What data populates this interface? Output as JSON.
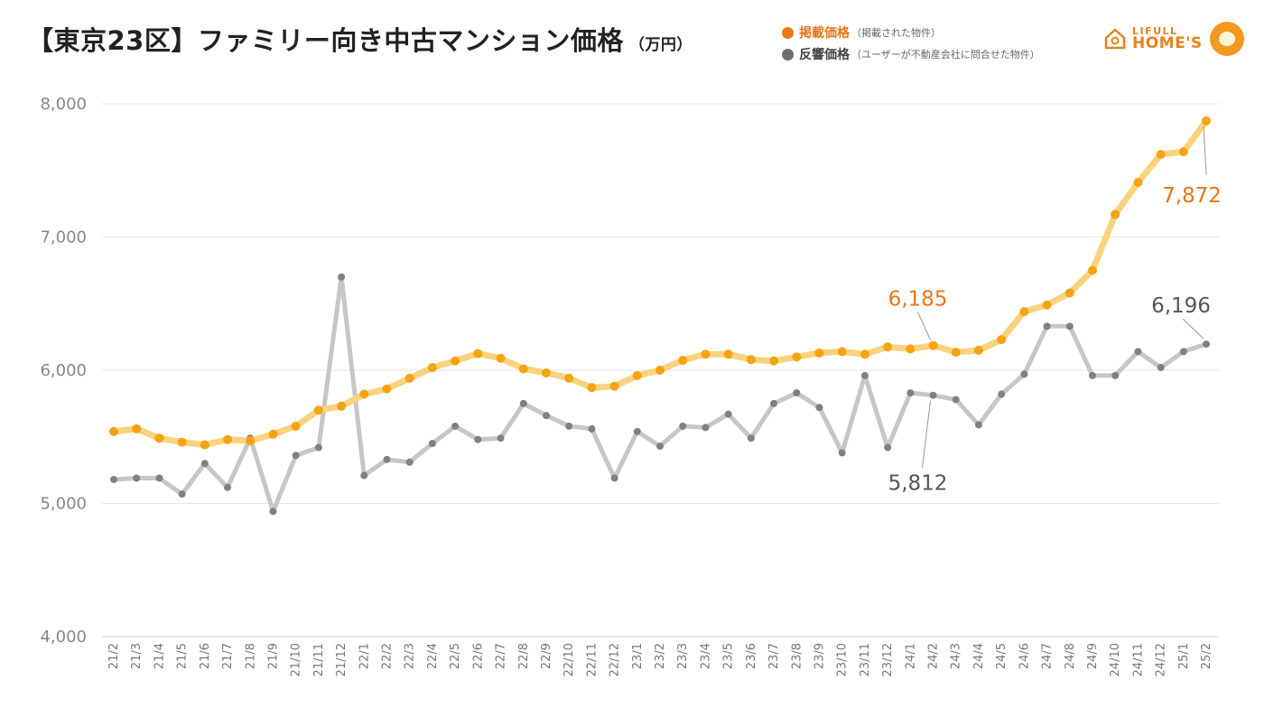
{
  "title": {
    "main": "【東京23区】ファミリー向き中古マンション価格",
    "unit": "（万円）"
  },
  "legend": {
    "listed": {
      "label": "掲載価格",
      "note": "（掲載された物件）",
      "color": "#f5a312"
    },
    "response": {
      "label": "反響価格",
      "note": "（ユーザーが不動産会社に問合せた物件）",
      "color": "#808080"
    }
  },
  "brand": {
    "line1": "LIFULL",
    "line2": "HOME'S"
  },
  "chart_data": {
    "type": "line",
    "ylim": [
      4000,
      8000
    ],
    "yticks": [
      4000,
      5000,
      6000,
      7000,
      8000
    ],
    "ytick_labels": [
      "4,000",
      "5,000",
      "6,000",
      "7,000",
      "8,000"
    ],
    "grid": true,
    "categories": [
      "21/2",
      "21/3",
      "21/4",
      "21/5",
      "21/6",
      "21/7",
      "21/8",
      "21/9",
      "21/10",
      "21/11",
      "21/12",
      "22/1",
      "22/2",
      "22/3",
      "22/4",
      "22/5",
      "22/6",
      "22/7",
      "22/8",
      "22/9",
      "22/10",
      "22/11",
      "22/12",
      "23/1",
      "23/2",
      "23/3",
      "23/4",
      "23/5",
      "23/6",
      "23/7",
      "23/8",
      "23/9",
      "23/10",
      "23/11",
      "23/12",
      "24/1",
      "24/2",
      "24/3",
      "24/4",
      "24/5",
      "24/6",
      "24/7",
      "24/8",
      "24/9",
      "24/10",
      "24/11",
      "24/12",
      "25/1",
      "25/2"
    ],
    "series": [
      {
        "name": "掲載価格",
        "color": "#f5a312",
        "line_color": "#f8d27d",
        "values": [
          5540,
          5560,
          5490,
          5460,
          5440,
          5480,
          5470,
          5520,
          5580,
          5700,
          5730,
          5820,
          5860,
          5940,
          6020,
          6070,
          6125,
          6090,
          6010,
          5980,
          5940,
          5870,
          5880,
          5960,
          6000,
          6075,
          6120,
          6120,
          6080,
          6070,
          6100,
          6130,
          6140,
          6120,
          6175,
          6160,
          6185,
          6135,
          6150,
          6230,
          6440,
          6490,
          6580,
          6750,
          7170,
          7410,
          7620,
          7640,
          7872
        ]
      },
      {
        "name": "反響価格",
        "color": "#808080",
        "line_color": "#c6c6c6",
        "values": [
          5180,
          5190,
          5190,
          5070,
          5300,
          5120,
          5490,
          4940,
          5360,
          5420,
          6700,
          5210,
          5330,
          5310,
          5450,
          5580,
          5480,
          5490,
          5750,
          5660,
          5580,
          5560,
          5190,
          5540,
          5430,
          5580,
          5570,
          5670,
          5490,
          5750,
          5830,
          5720,
          5380,
          5960,
          5420,
          5830,
          5812,
          5780,
          5590,
          5820,
          5970,
          6330,
          6330,
          5960,
          5960,
          6140,
          6020,
          6140,
          6196
        ]
      }
    ],
    "annotations": [
      {
        "text": "7,872",
        "series": 0,
        "index": 48
      },
      {
        "text": "6,185",
        "series": 0,
        "index": 36
      },
      {
        "text": "6,196",
        "series": 1,
        "index": 48
      },
      {
        "text": "5,812",
        "series": 1,
        "index": 36
      }
    ]
  }
}
